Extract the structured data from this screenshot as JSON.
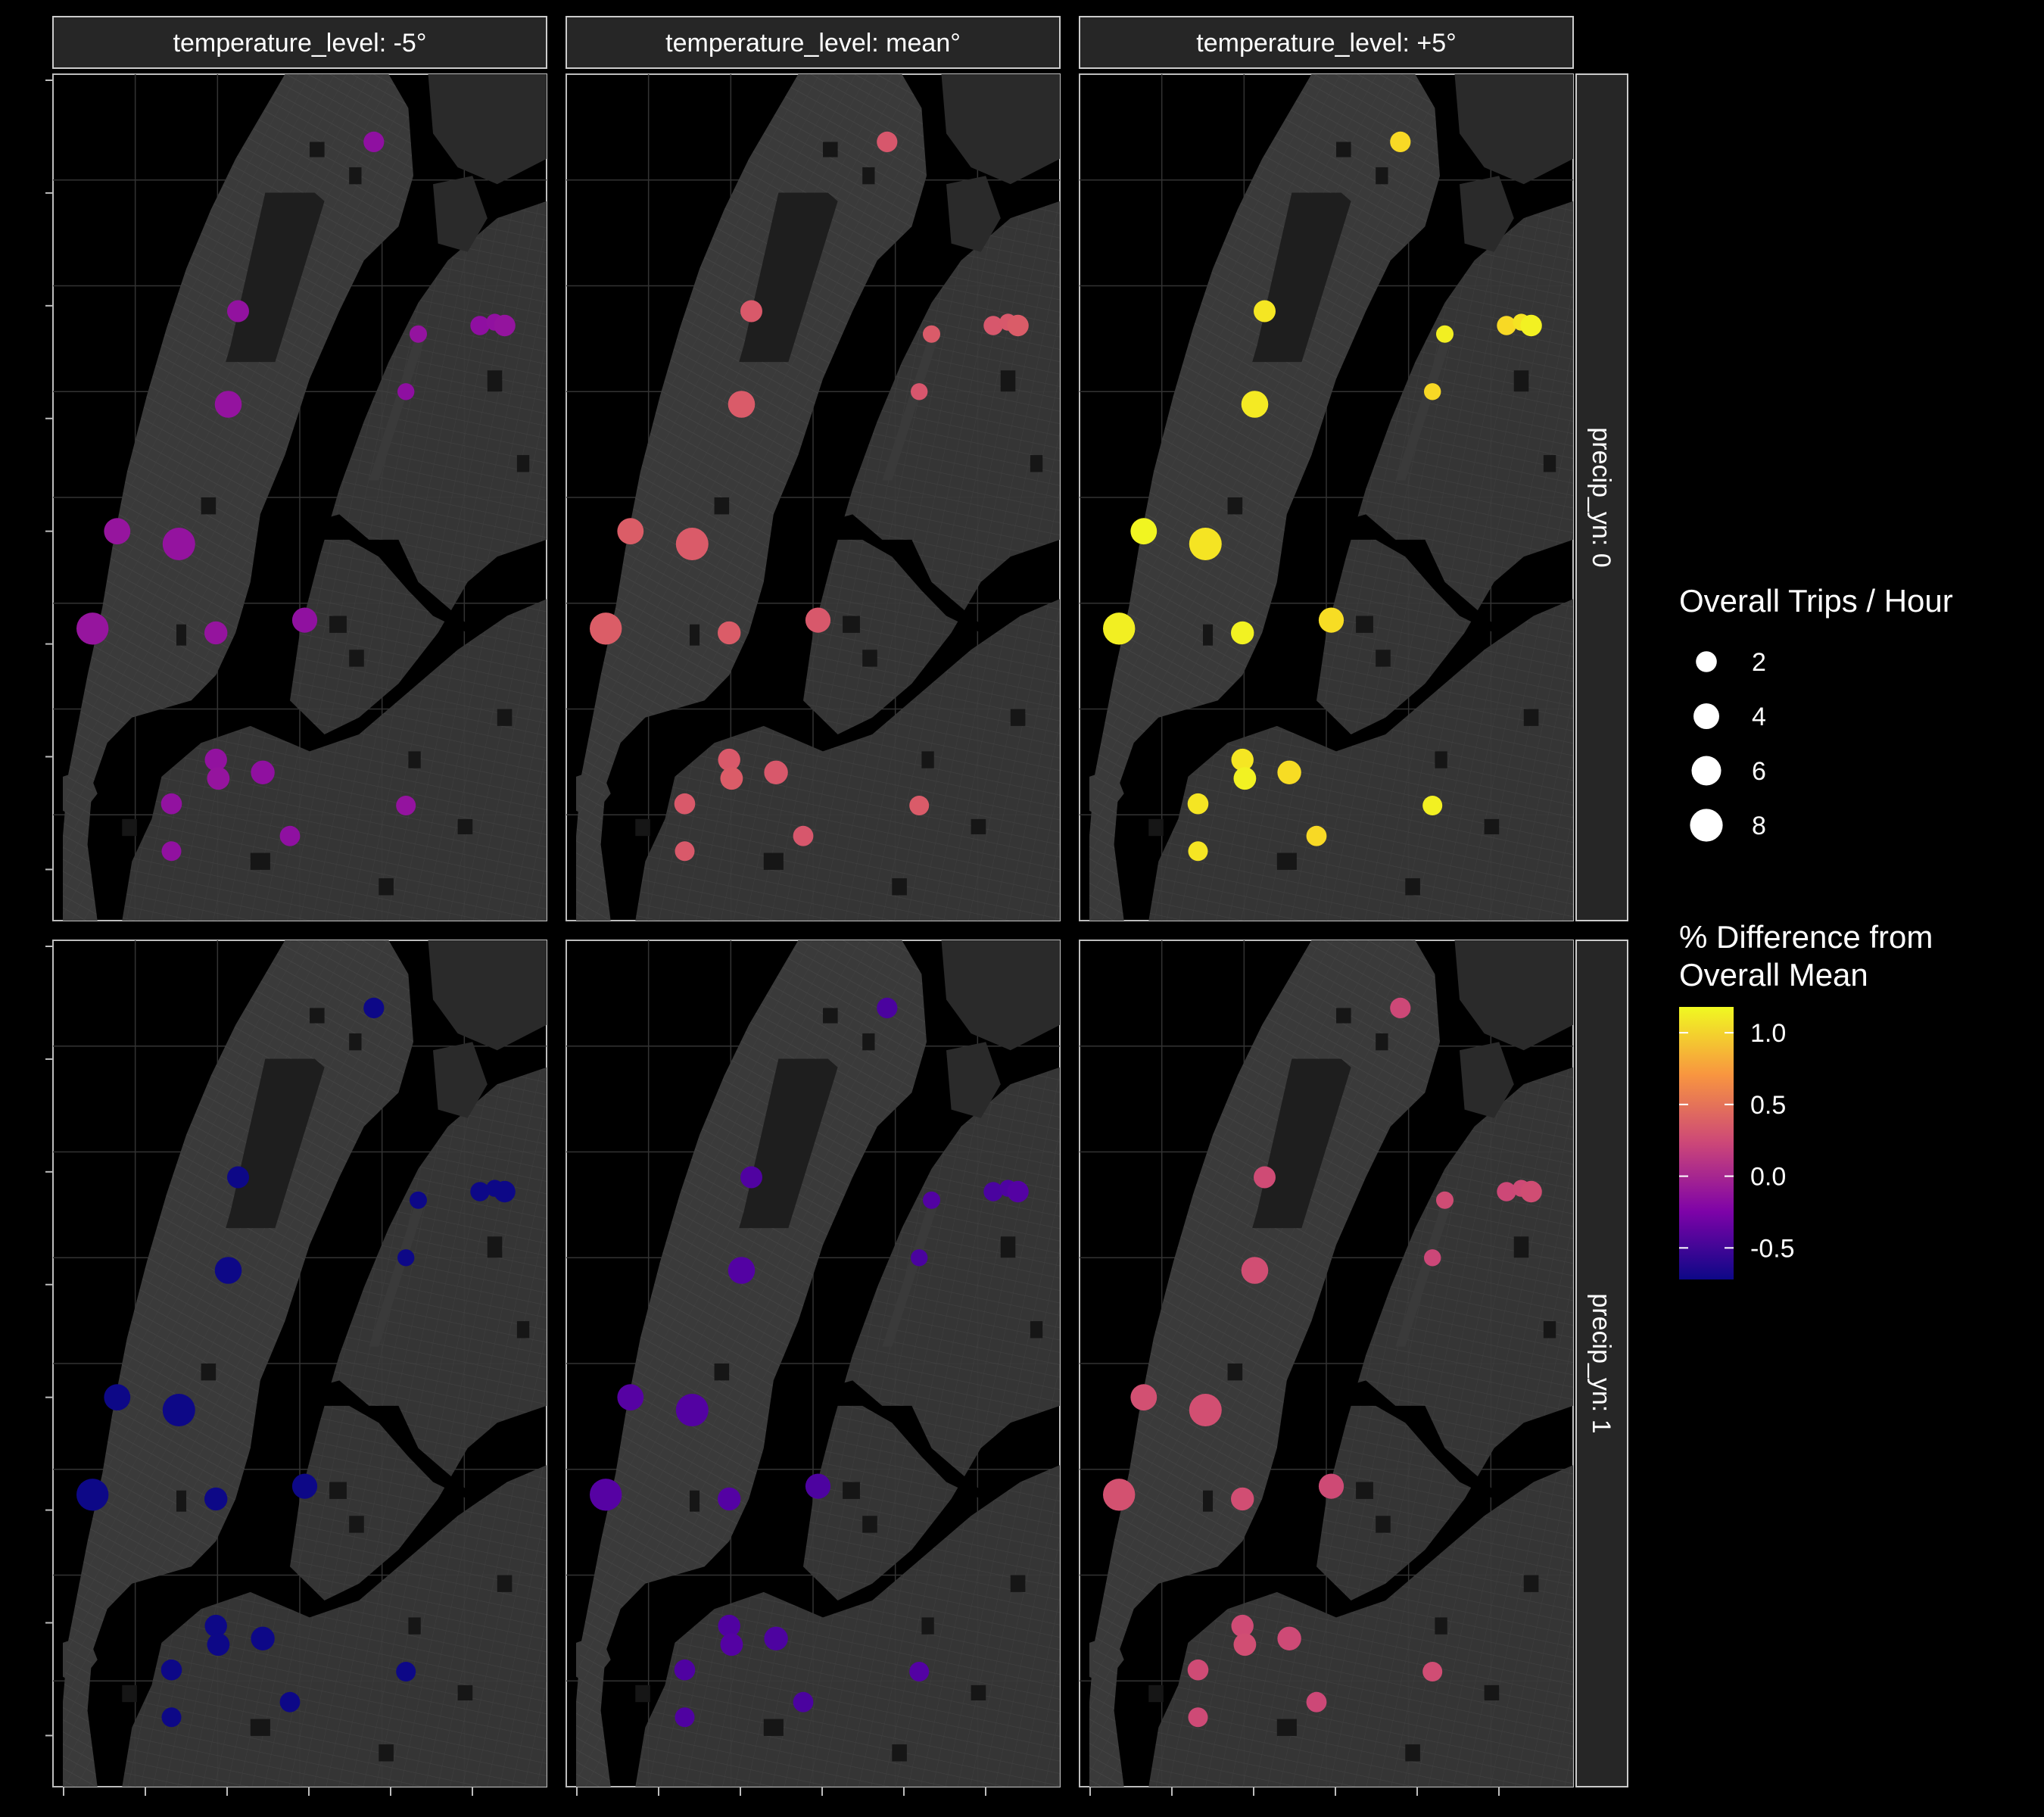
{
  "facets": {
    "columns": [
      "temperature_level: -5°",
      "temperature_level: mean°",
      "temperature_level: +5°"
    ],
    "rows": [
      "precip_yn: 0",
      "precip_yn: 1"
    ]
  },
  "colors": {
    "background": "#000000",
    "panel_fill": "#000000",
    "land": "#3a3a3a",
    "land_dark": "#2a2a2a",
    "park": "#1e1e1e",
    "water": "#000000",
    "strip_fill": "#262626",
    "strip_border": "#cccccc",
    "street": "#4a4a4a",
    "gridline": "#333333"
  },
  "legend": {
    "size": {
      "title": "Overall Trips / Hour",
      "breaks": [
        2,
        4,
        6,
        8
      ],
      "labels": [
        "2",
        "4",
        "6",
        "8"
      ]
    },
    "color": {
      "title_lines": [
        "% Difference from",
        "Overall Mean"
      ],
      "palette": "plasma",
      "range": [
        -0.72,
        1.18
      ],
      "breaks": [
        1.0,
        0.5,
        0.0,
        -0.5
      ],
      "labels": [
        "1.0",
        "0.5",
        "0.0",
        "-0.5"
      ]
    }
  },
  "stations": [
    {
      "id": "s01",
      "u": 0.65,
      "v": 0.08,
      "trips": 1.9
    },
    {
      "id": "s02",
      "u": 0.375,
      "v": 0.28,
      "trips": 2.4
    },
    {
      "id": "s03",
      "u": 0.74,
      "v": 0.307,
      "trips": 1.0
    },
    {
      "id": "s04",
      "u": 0.865,
      "v": 0.297,
      "trips": 1.5
    },
    {
      "id": "s05",
      "u": 0.895,
      "v": 0.293,
      "trips": 0.9
    },
    {
      "id": "s06",
      "u": 0.915,
      "v": 0.297,
      "trips": 2.2
    },
    {
      "id": "s07",
      "u": 0.715,
      "v": 0.375,
      "trips": 0.9
    },
    {
      "id": "s08",
      "u": 0.355,
      "v": 0.39,
      "trips": 4.6
    },
    {
      "id": "s09",
      "u": 0.13,
      "v": 0.54,
      "trips": 4.3
    },
    {
      "id": "s10",
      "u": 0.255,
      "v": 0.555,
      "trips": 7.9
    },
    {
      "id": "s11",
      "u": 0.08,
      "v": 0.655,
      "trips": 7.6
    },
    {
      "id": "s12",
      "u": 0.33,
      "v": 0.66,
      "trips": 2.8
    },
    {
      "id": "s13",
      "u": 0.51,
      "v": 0.645,
      "trips": 3.7
    },
    {
      "id": "s14",
      "u": 0.33,
      "v": 0.81,
      "trips": 2.5
    },
    {
      "id": "s15",
      "u": 0.335,
      "v": 0.832,
      "trips": 2.6
    },
    {
      "id": "s16",
      "u": 0.425,
      "v": 0.825,
      "trips": 3.1
    },
    {
      "id": "s17",
      "u": 0.24,
      "v": 0.862,
      "trips": 2.0
    },
    {
      "id": "s18",
      "u": 0.715,
      "v": 0.864,
      "trips": 1.6
    },
    {
      "id": "s19",
      "u": 0.48,
      "v": 0.9,
      "trips": 1.8
    },
    {
      "id": "s20",
      "u": 0.24,
      "v": 0.918,
      "trips": 1.6
    }
  ],
  "facet_shift": {
    "rows": [
      0.36,
      -0.48
    ],
    "columns": [
      -0.48,
      0.0,
      0.75
    ]
  }
}
